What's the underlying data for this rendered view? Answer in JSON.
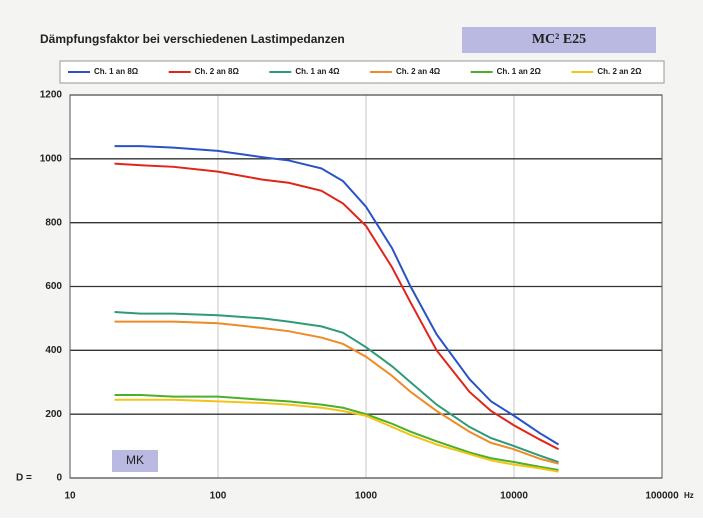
{
  "chart_data": {
    "type": "line",
    "title": "Dämpfungsfaktor bei verschiedenen Lastimpedanzen",
    "subtitle": "MC² E25",
    "annotation": "MK",
    "xlabel": "Hz",
    "ylabel": "D =",
    "xscale": "log",
    "grid": true,
    "legend": "top",
    "x": [
      20,
      30,
      50,
      100,
      200,
      300,
      500,
      700,
      1000,
      1500,
      2000,
      3000,
      5000,
      7000,
      10000,
      15000,
      20000
    ],
    "series": [
      {
        "name": "Ch. 1 an 8Ω",
        "color": "#2a52c8",
        "values": [
          1040,
          1040,
          1035,
          1025,
          1005,
          995,
          970,
          930,
          850,
          720,
          600,
          450,
          310,
          240,
          195,
          140,
          105
        ]
      },
      {
        "name": "Ch. 2 an 8Ω",
        "color": "#e0251b",
        "values": [
          985,
          980,
          975,
          960,
          935,
          925,
          900,
          860,
          790,
          660,
          550,
          400,
          270,
          210,
          165,
          120,
          90
        ]
      },
      {
        "name": "Ch. 1 an 4Ω",
        "color": "#2f9a7a",
        "values": [
          520,
          515,
          515,
          510,
          500,
          490,
          475,
          455,
          410,
          350,
          300,
          230,
          160,
          125,
          100,
          70,
          50
        ]
      },
      {
        "name": "Ch. 2 an 4Ω",
        "color": "#f08a24",
        "values": [
          490,
          490,
          490,
          485,
          470,
          460,
          440,
          420,
          380,
          320,
          270,
          210,
          145,
          110,
          90,
          60,
          45
        ]
      },
      {
        "name": "Ch. 1 an 2Ω",
        "color": "#4caf2a",
        "values": [
          260,
          260,
          255,
          255,
          245,
          240,
          230,
          220,
          200,
          170,
          145,
          115,
          80,
          62,
          50,
          35,
          25
        ]
      },
      {
        "name": "Ch. 2 an 2Ω",
        "color": "#f2c418",
        "values": [
          245,
          245,
          245,
          240,
          235,
          230,
          220,
          210,
          195,
          160,
          135,
          105,
          75,
          55,
          42,
          30,
          20
        ]
      }
    ],
    "xlim": [
      10,
      100000
    ],
    "xticks": [
      10,
      100,
      1000,
      10000,
      100000
    ],
    "ylim": [
      0,
      1200
    ],
    "yticks": [
      0,
      200,
      400,
      600,
      800,
      1000,
      1200
    ]
  }
}
